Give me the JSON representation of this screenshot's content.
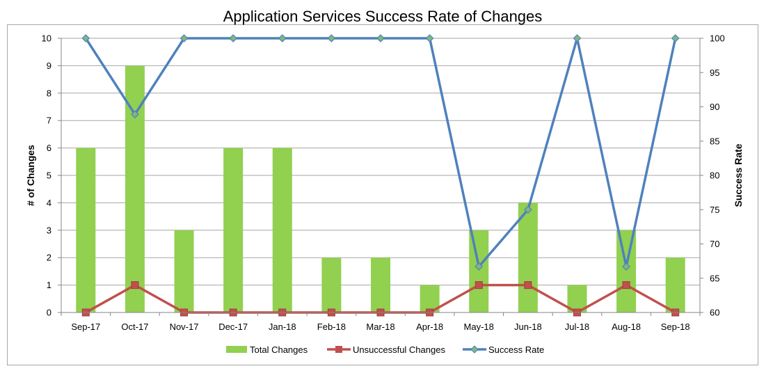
{
  "chart_data": {
    "type": "bar",
    "title": "Application Services Success Rate of Changes",
    "categories": [
      "Sep-17",
      "Oct-17",
      "Nov-17",
      "Dec-17",
      "Jan-18",
      "Feb-18",
      "Mar-18",
      "Apr-18",
      "May-18",
      "Jun-18",
      "Jul-18",
      "Aug-18",
      "Sep-18"
    ],
    "ylabel": "# of Changes",
    "y2label": "Success Rate",
    "ylim": [
      0,
      10
    ],
    "y2lim": [
      60,
      100
    ],
    "yticks": [
      "0",
      "1",
      "2",
      "3",
      "4",
      "5",
      "6",
      "7",
      "8",
      "9",
      "10"
    ],
    "y2ticks": [
      "60",
      "65",
      "70",
      "75",
      "80",
      "85",
      "90",
      "95",
      "100"
    ],
    "grid": true,
    "legend_position": "bottom",
    "series": [
      {
        "name": "Total Changes",
        "type": "bar",
        "axis": "left",
        "color": "#92d050",
        "values": [
          6,
          9,
          3,
          6,
          6,
          2,
          2,
          1,
          3,
          4,
          1,
          3,
          2
        ]
      },
      {
        "name": "Unsuccessful Changes",
        "type": "line",
        "axis": "left",
        "color": "#c0504d",
        "marker": "square",
        "values": [
          0,
          1,
          0,
          0,
          0,
          0,
          0,
          0,
          1,
          1,
          0,
          1,
          0
        ]
      },
      {
        "name": "Success Rate",
        "type": "line",
        "axis": "right",
        "color": "#4f81bd",
        "marker": "diamond",
        "values": [
          100,
          88.9,
          100,
          100,
          100,
          100,
          100,
          100,
          66.7,
          75,
          100,
          66.7,
          100
        ]
      }
    ]
  }
}
